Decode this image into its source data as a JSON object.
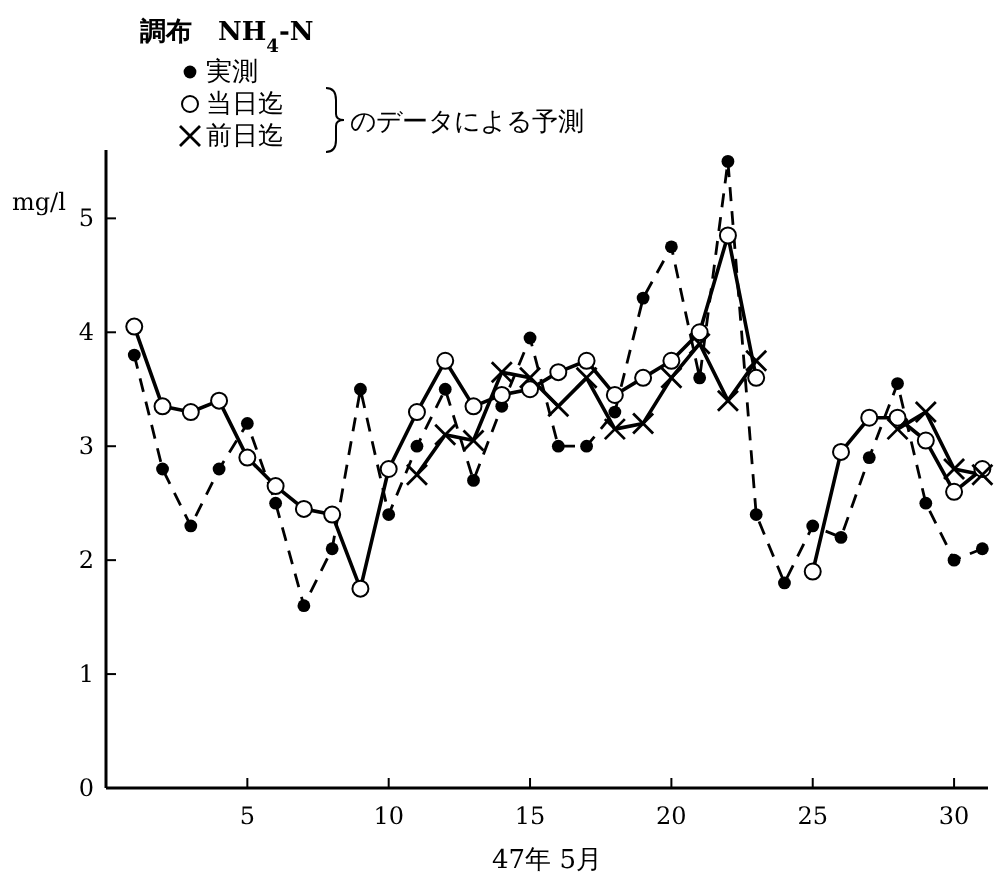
{
  "chart_data": {
    "type": "line",
    "title": "調布　NH$_{4}$-N",
    "xlabel": "47年 5月",
    "ylabel": "mg/l",
    "x": [
      1,
      2,
      3,
      4,
      5,
      6,
      7,
      8,
      9,
      10,
      11,
      12,
      13,
      14,
      15,
      16,
      17,
      18,
      19,
      20,
      21,
      22,
      23,
      24,
      25,
      26,
      27,
      28,
      29,
      30,
      31
    ],
    "xlim": [
      0,
      31.2
    ],
    "xticks": [
      5,
      10,
      15,
      20,
      25,
      30
    ],
    "ylim": [
      0,
      5.6
    ],
    "yticks": [
      0,
      1,
      2,
      3,
      4,
      5
    ],
    "legend": "top left",
    "grid": false,
    "annotations": [
      "のデータによる予測"
    ],
    "series": [
      {
        "name": "実測",
        "color": "#000000",
        "marker": "circle",
        "line_style": "dashed",
        "values": [
          3.8,
          2.8,
          2.3,
          2.8,
          3.2,
          2.5,
          1.6,
          2.1,
          3.5,
          2.4,
          3.0,
          3.5,
          2.7,
          3.35,
          3.95,
          3.0,
          3.0,
          3.3,
          4.3,
          4.75,
          3.6,
          5.5,
          2.4,
          1.8,
          2.3,
          2.2,
          2.9,
          3.55,
          2.5,
          2.0,
          2.1
        ]
      },
      {
        "name": "当日迄",
        "color": "#000000",
        "marker": "circle_open",
        "line_style": "solid",
        "values": [
          4.05,
          3.35,
          3.3,
          3.4,
          2.9,
          2.65,
          2.45,
          2.4,
          1.75,
          2.8,
          3.3,
          3.75,
          3.35,
          3.45,
          3.5,
          3.65,
          3.75,
          3.45,
          3.6,
          3.75,
          4.0,
          4.85,
          3.6,
          null,
          1.9,
          2.95,
          3.25,
          3.25,
          3.05,
          2.6,
          2.8
        ]
      },
      {
        "name": "前日迄",
        "color": "#000000",
        "marker": "cross",
        "line_style": "solid",
        "values": [
          null,
          null,
          null,
          null,
          null,
          null,
          null,
          null,
          null,
          null,
          2.75,
          3.1,
          3.05,
          3.65,
          3.6,
          3.35,
          3.6,
          3.15,
          3.2,
          3.6,
          3.9,
          3.4,
          3.75,
          null,
          null,
          null,
          null,
          3.15,
          3.3,
          2.8,
          2.75
        ]
      }
    ]
  }
}
